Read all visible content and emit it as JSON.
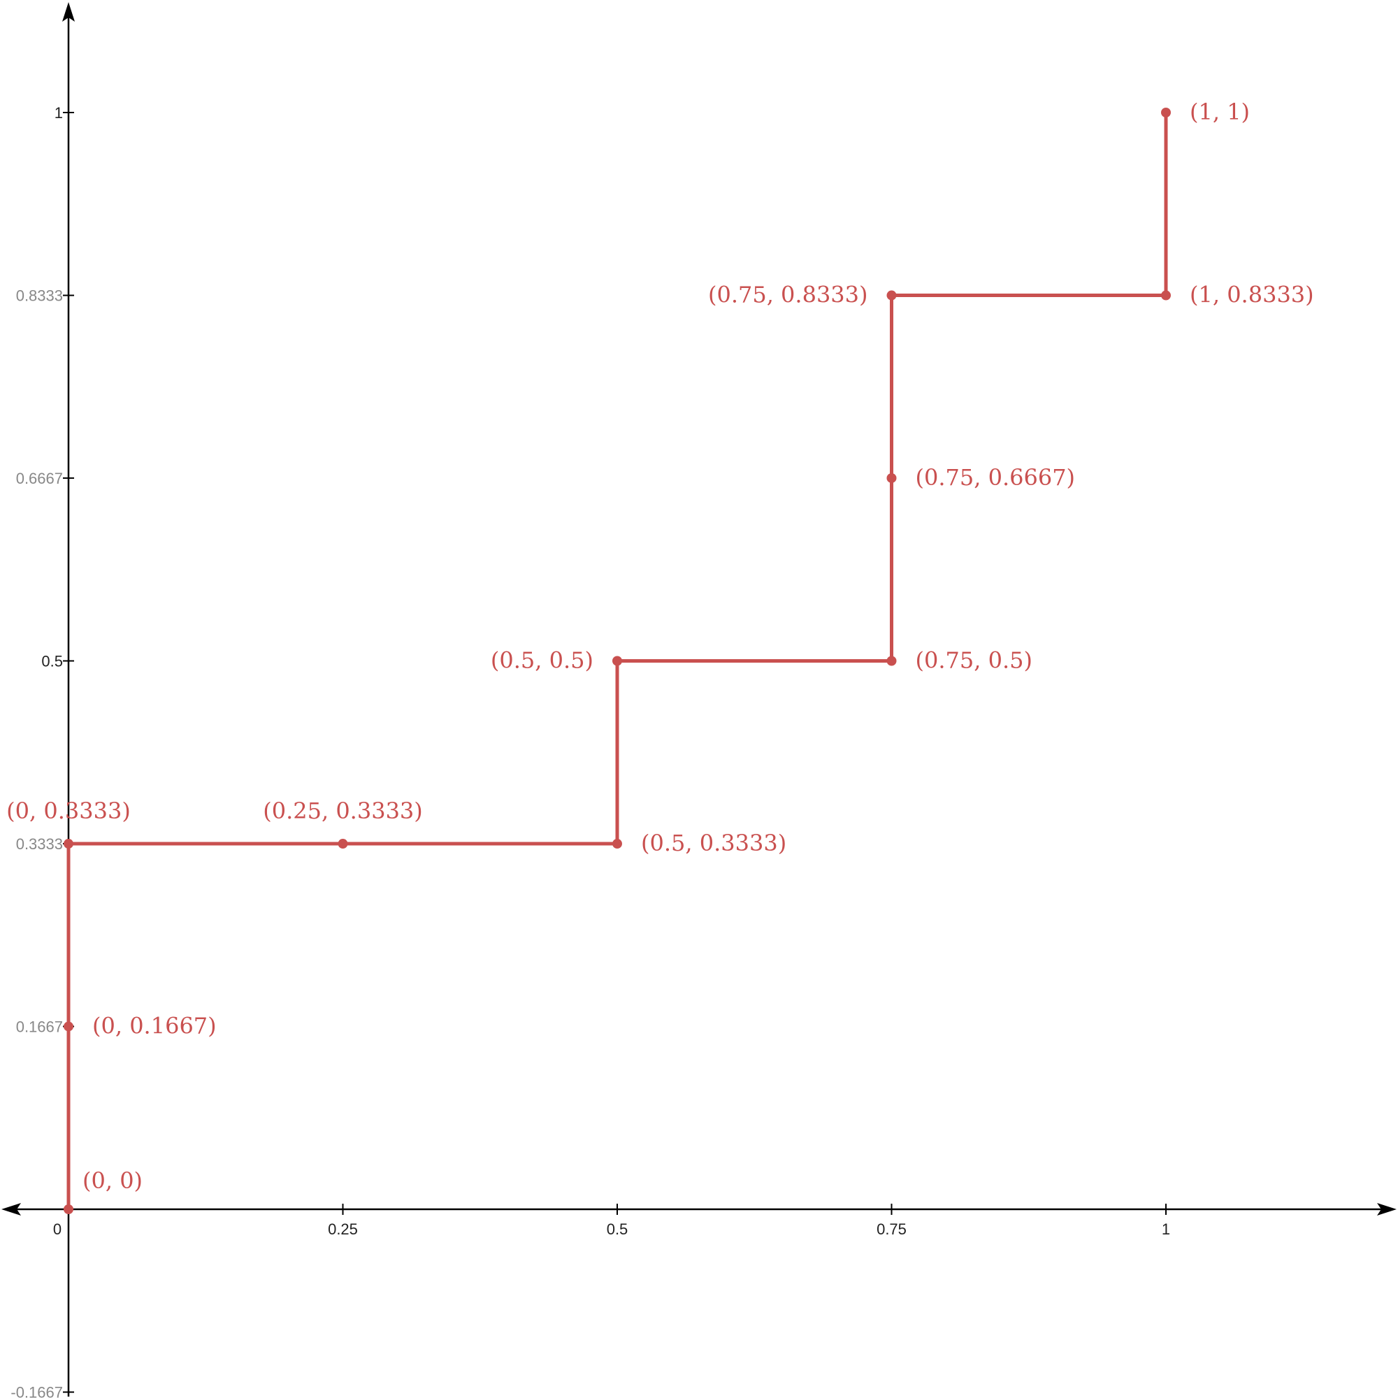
{
  "chart_data": {
    "type": "line",
    "title": "",
    "xlabel": "",
    "ylabel": "",
    "xlim": [
      -0.25,
      1.3
    ],
    "ylim": [
      -0.1667,
      1.25
    ],
    "grid": false,
    "x_ticks": [
      {
        "value": 0,
        "label": "0"
      },
      {
        "value": 0.25,
        "label": "0.25"
      },
      {
        "value": 0.5,
        "label": "0.5"
      },
      {
        "value": 0.75,
        "label": "0.75"
      },
      {
        "value": 1,
        "label": "1"
      }
    ],
    "y_ticks": [
      {
        "value": -0.1667,
        "label": "-0.1667",
        "color": "#888888"
      },
      {
        "value": 0.1667,
        "label": "0.1667",
        "color": "#888888"
      },
      {
        "value": 0.3333,
        "label": "0.3333",
        "color": "#888888"
      },
      {
        "value": 0.5,
        "label": "0.5",
        "color": "#222222"
      },
      {
        "value": 0.6667,
        "label": "0.6667",
        "color": "#888888"
      },
      {
        "value": 0.8333,
        "label": "0.8333",
        "color": "#888888"
      },
      {
        "value": 1,
        "label": "1",
        "color": "#222222"
      }
    ],
    "series": [
      {
        "color": "#c9504f",
        "path": [
          {
            "x": 0,
            "y": 0
          },
          {
            "x": 0,
            "y": 0.3333
          },
          {
            "x": 0.5,
            "y": 0.3333
          },
          {
            "x": 0.5,
            "y": 0.5
          },
          {
            "x": 0.75,
            "y": 0.5
          },
          {
            "x": 0.75,
            "y": 0.8333
          },
          {
            "x": 1,
            "y": 0.8333
          },
          {
            "x": 1,
            "y": 1
          }
        ],
        "points": [
          {
            "x": 0,
            "y": 0,
            "label": "(0, 0)",
            "anchor": "upper-right"
          },
          {
            "x": 0,
            "y": 0.1667,
            "label": "(0, 0.1667)",
            "anchor": "right"
          },
          {
            "x": 0,
            "y": 0.3333,
            "label": "(0, 0.3333)",
            "anchor": "above"
          },
          {
            "x": 0.25,
            "y": 0.3333,
            "label": "(0.25, 0.3333)",
            "anchor": "above"
          },
          {
            "x": 0.5,
            "y": 0.3333,
            "label": "(0.5, 0.3333)",
            "anchor": "right"
          },
          {
            "x": 0.5,
            "y": 0.5,
            "label": "(0.5, 0.5)",
            "anchor": "left"
          },
          {
            "x": 0.75,
            "y": 0.5,
            "label": "(0.75, 0.5)",
            "anchor": "right"
          },
          {
            "x": 0.75,
            "y": 0.6667,
            "label": "(0.75, 0.6667)",
            "anchor": "right"
          },
          {
            "x": 0.75,
            "y": 0.8333,
            "label": "(0.75, 0.8333)",
            "anchor": "left"
          },
          {
            "x": 1,
            "y": 0.8333,
            "label": "(1, 0.8333)",
            "anchor": "right"
          },
          {
            "x": 1,
            "y": 1,
            "label": "(1, 1)",
            "anchor": "right"
          }
        ]
      }
    ]
  }
}
